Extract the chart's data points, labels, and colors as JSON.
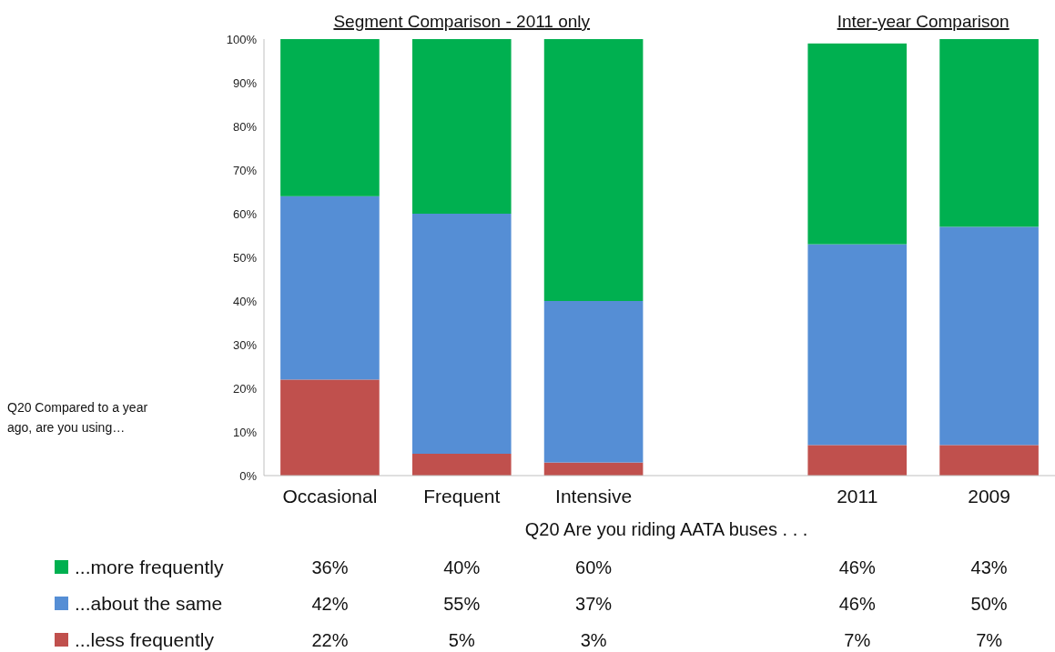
{
  "chart_data": {
    "type": "bar",
    "stacked": true,
    "categories": [
      "Occasional",
      "Frequent",
      "Intensive",
      null,
      "2011",
      "2009"
    ],
    "xlabel": "Q20 Are you riding AATA buses . . .",
    "annotations": [
      "Segment Comparison - 2011 only",
      "Inter-year Comparison",
      "Q20 Compared to a year ago, are you using…"
    ],
    "ylim": [
      0,
      100
    ],
    "yticks": [
      {
        "value": 0,
        "label": "0%"
      },
      {
        "value": 10,
        "label": "10%"
      },
      {
        "value": 20,
        "label": "20%"
      },
      {
        "value": 30,
        "label": "30%"
      },
      {
        "value": 40,
        "label": "40%"
      },
      {
        "value": 50,
        "label": "50%"
      },
      {
        "value": 60,
        "label": "60%"
      },
      {
        "value": 70,
        "label": "70%"
      },
      {
        "value": 80,
        "label": "80%"
      },
      {
        "value": 90,
        "label": "90%"
      },
      {
        "value": 100,
        "label": "100%"
      }
    ],
    "grid": false,
    "legend": "bottom",
    "series": [
      {
        "name": "...less frequently",
        "color": "#c0504d",
        "values": [
          22,
          5,
          3,
          null,
          7,
          7
        ],
        "value_labels": [
          "22%",
          "5%",
          "3%",
          null,
          "7%",
          "7%"
        ]
      },
      {
        "name": "...about the same",
        "color": "#558ed5",
        "values": [
          42,
          55,
          37,
          null,
          46,
          50
        ],
        "value_labels": [
          "42%",
          "55%",
          "37%",
          null,
          "46%",
          "50%"
        ]
      },
      {
        "name": "...more frequently",
        "color": "#00b050",
        "values": [
          36,
          40,
          60,
          null,
          46,
          43
        ],
        "value_labels": [
          "36%",
          "40%",
          "60%",
          null,
          "46%",
          "43%"
        ]
      }
    ]
  }
}
